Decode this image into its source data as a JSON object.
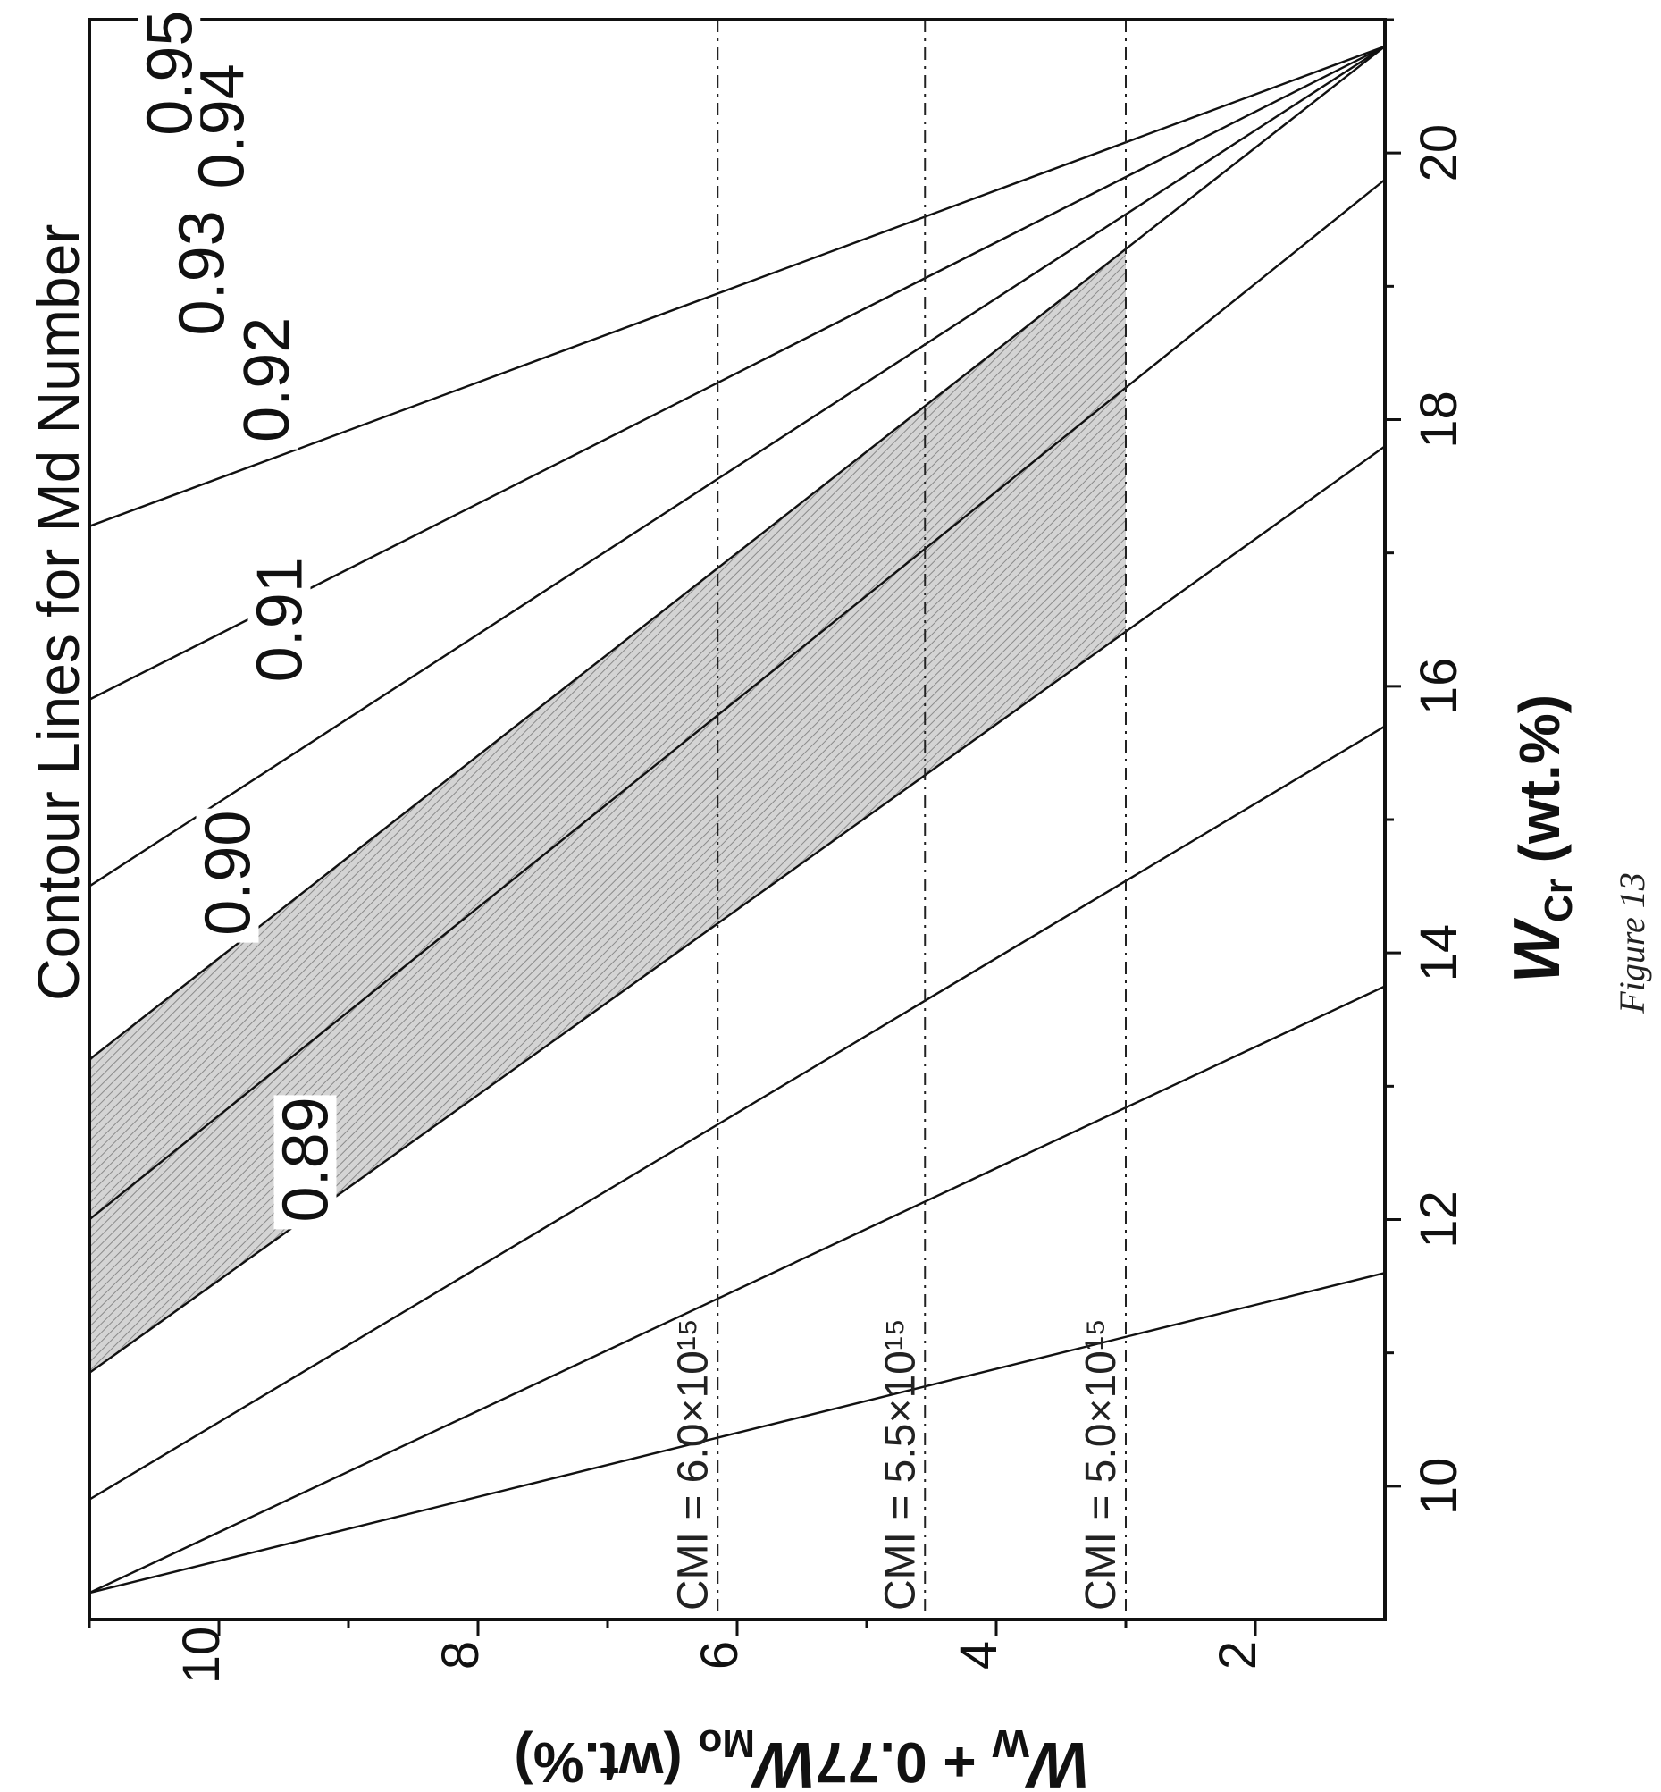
{
  "chart_data": {
    "type": "line",
    "title": "Contour Lines for Md Number",
    "xlabel": {
      "base": "W",
      "sub": "Cr",
      "suffix": " (wt.%)"
    },
    "ylabel": {
      "base1": "W",
      "sub1": "W",
      "mid": " + 0.77",
      "base2": "W",
      "sub2": "Mo",
      "suffix": " (wt.%)"
    },
    "xlim": [
      9.0,
      21.0
    ],
    "ylim": [
      1.0,
      11.0
    ],
    "x_ticks": [
      10,
      12,
      14,
      16,
      18,
      20
    ],
    "y_ticks": [
      2,
      4,
      6,
      8,
      10
    ],
    "x_tick_labels": [
      "10",
      "12",
      "14",
      "16",
      "18",
      "20"
    ],
    "y_tick_labels": [
      "2",
      "4",
      "6",
      "8",
      "10"
    ],
    "contours": [
      {
        "label": "",
        "points": [
          [
            9.2,
            11.0
          ],
          [
            11.6,
            1.0
          ]
        ]
      },
      {
        "label": "0.89",
        "points": [
          [
            9.2,
            11.0
          ],
          [
            13.75,
            1.0
          ]
        ]
      },
      {
        "label": "0.90",
        "points": [
          [
            9.9,
            11.0
          ],
          [
            15.7,
            1.0
          ]
        ]
      },
      {
        "label": "0.91",
        "points": [
          [
            10.85,
            11.0
          ],
          [
            17.8,
            1.0
          ]
        ]
      },
      {
        "label": "0.92",
        "points": [
          [
            12.0,
            11.0
          ],
          [
            19.8,
            1.0
          ]
        ]
      },
      {
        "label": "0.93",
        "points": [
          [
            13.2,
            11.0
          ],
          [
            20.8,
            1.0
          ]
        ]
      },
      {
        "label": "0.94",
        "points": [
          [
            14.5,
            11.0
          ],
          [
            20.8,
            1.0
          ]
        ]
      },
      {
        "label": "0.95",
        "points": [
          [
            15.9,
            11.0
          ],
          [
            20.8,
            1.0
          ]
        ]
      },
      {
        "label": "",
        "points": [
          [
            17.2,
            11.0
          ],
          [
            20.8,
            1.0
          ]
        ]
      }
    ],
    "contour_label_positions": [
      {
        "label": "0.89",
        "x": 12.45,
        "y": 9.3
      },
      {
        "label": "0.90",
        "x": 14.6,
        "y": 9.9
      },
      {
        "label": "0.91",
        "x": 16.5,
        "y": 9.5
      },
      {
        "label": "0.92",
        "x": 18.3,
        "y": 9.6
      },
      {
        "label": "0.93",
        "x": 19.1,
        "y": 10.1
      },
      {
        "label": "0.94",
        "x": 20.2,
        "y": 9.95
      },
      {
        "label": "0.95",
        "x": 20.6,
        "y": 10.35
      }
    ],
    "cmi_lines": [
      {
        "label": "CMI = 6.0×10¹⁵",
        "y": 6.15
      },
      {
        "label": "CMI = 5.5×10¹⁵",
        "y": 4.55
      },
      {
        "label": "CMI = 5.0×10¹⁵",
        "y": 3.0
      }
    ],
    "shaded_region": {
      "between": [
        "0.91",
        "0.93"
      ],
      "y_min": 3.0,
      "y_max": 11.0
    },
    "grid": false,
    "orientation": "rotated 90° clockwise"
  },
  "caption": "Figure 13",
  "colors": {
    "line": "#111111",
    "shade": "#cfcfcf",
    "hatch": "#9a9a9a",
    "background": "#ffffff"
  }
}
